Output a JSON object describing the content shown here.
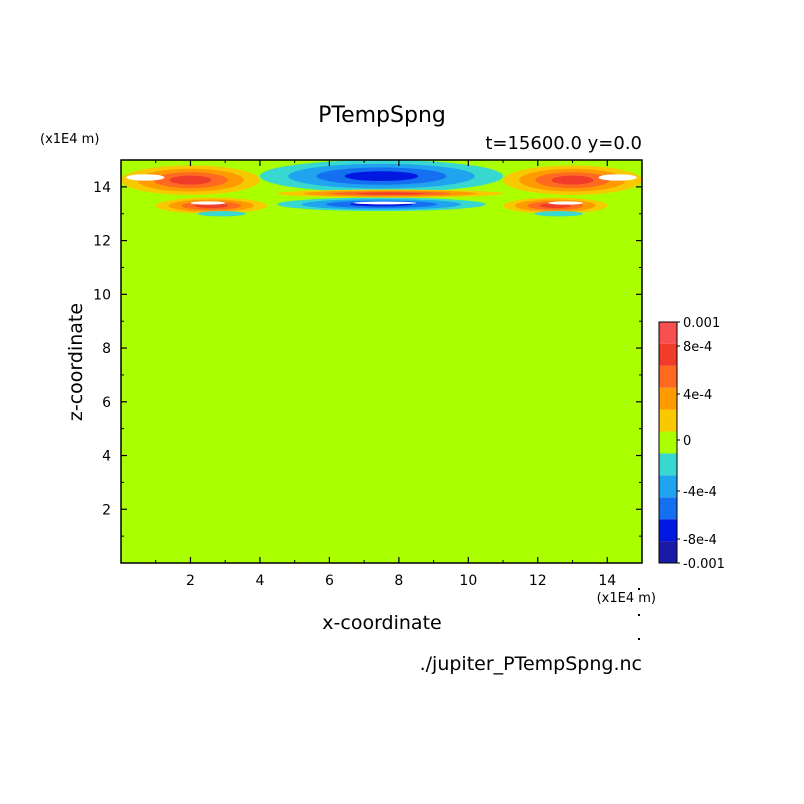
{
  "chart_data": {
    "type": "heatmap",
    "title": "PTempSpng",
    "subtitle": "t=15600.0 y=0.0",
    "xlabel": "x-coordinate",
    "ylabel": "z-coordinate",
    "x_unit": "(x1E4 m)",
    "y_unit": "(x1E4 m)",
    "source": "./jupiter_PTempSpng.nc",
    "xlim": [
      0,
      15
    ],
    "ylim": [
      0,
      15
    ],
    "x_ticks": [
      "2",
      "4",
      "6",
      "8",
      "10",
      "12",
      "14"
    ],
    "y_ticks": [
      "2",
      "4",
      "6",
      "8",
      "10",
      "12",
      "14"
    ],
    "background_value": 0,
    "colorbar": {
      "labels": [
        "0.001",
        "8e-4",
        "4e-4",
        "0",
        "-4e-4",
        "-8e-4",
        "-0.001"
      ],
      "levels": [
        {
          "color": "#1a1aa8"
        },
        {
          "color": "#0018e0"
        },
        {
          "color": "#1470f0"
        },
        {
          "color": "#20a4f0"
        },
        {
          "color": "#38d8d0"
        },
        {
          "color": "#aaff00"
        },
        {
          "color": "#f8c800"
        },
        {
          "color": "#ff9a00"
        },
        {
          "color": "#ff6a20"
        },
        {
          "color": "#f03c28"
        },
        {
          "color": "#f85050"
        }
      ]
    },
    "features": [
      {
        "name": "warm-band-left-upper",
        "x": [
          0,
          4.0
        ],
        "z": [
          13.7,
          14.8
        ],
        "value": 0.0009
      },
      {
        "name": "warm-band-right-upper",
        "x": [
          11.0,
          15
        ],
        "z": [
          13.7,
          14.8
        ],
        "value": 0.0009
      },
      {
        "name": "warm-band-left-lower",
        "x": [
          1.0,
          4.2
        ],
        "z": [
          13.0,
          13.6
        ],
        "value": 0.0008
      },
      {
        "name": "warm-band-right-lower",
        "x": [
          11.0,
          14.0
        ],
        "z": [
          13.0,
          13.6
        ],
        "value": 0.0008
      },
      {
        "name": "cold-core-upper",
        "x": [
          4.0,
          11.0
        ],
        "z": [
          13.8,
          15
        ],
        "value": -0.0009
      },
      {
        "name": "cold-core-lower",
        "x": [
          4.5,
          10.5
        ],
        "z": [
          13.1,
          13.6
        ],
        "value": -0.0009
      },
      {
        "name": "warm-center-band",
        "x": [
          4.5,
          11.0
        ],
        "z": [
          13.6,
          13.9
        ],
        "value": 0.0006
      }
    ]
  }
}
